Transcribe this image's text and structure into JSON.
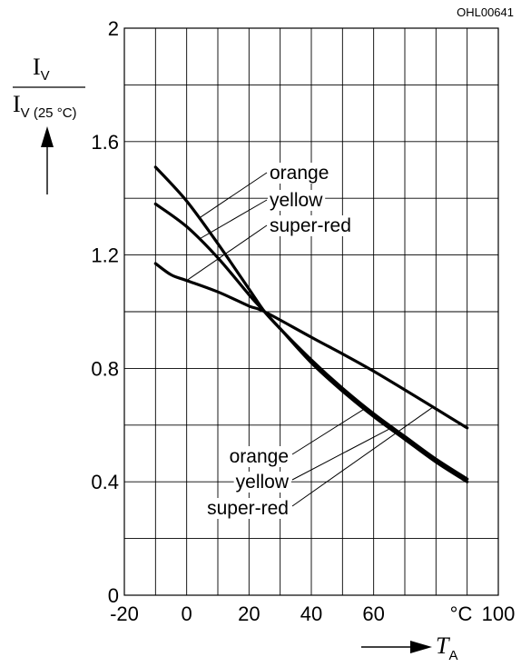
{
  "figure_code": "OHL00641",
  "unit_label": "°C",
  "y_axis": {
    "numerator": "I",
    "numerator_sub": "V",
    "denominator": "I",
    "denominator_sub": "V (25 °C)"
  },
  "x_axis": {
    "symbol": "T",
    "symbol_sub": "A"
  },
  "chart_data": {
    "type": "line",
    "xlim": [
      -20,
      100
    ],
    "ylim": [
      0,
      2
    ],
    "grid": true,
    "x_ticks": [
      "-20",
      "0",
      "20",
      "40",
      "60",
      "100"
    ],
    "y_ticks": [
      "0",
      "0.4",
      "0.8",
      "1.2",
      "1.6",
      "2"
    ],
    "series": [
      {
        "name": "orange",
        "x": [
          -10,
          0,
          10,
          20,
          25,
          30,
          40,
          50,
          60,
          70,
          80,
          90
        ],
        "y": [
          1.51,
          1.39,
          1.24,
          1.08,
          1.0,
          0.94,
          0.82,
          0.72,
          0.63,
          0.55,
          0.47,
          0.4
        ]
      },
      {
        "name": "yellow",
        "x": [
          -10,
          0,
          10,
          20,
          25,
          30,
          40,
          50,
          60,
          70,
          80,
          90
        ],
        "y": [
          1.38,
          1.3,
          1.19,
          1.06,
          1.0,
          0.94,
          0.83,
          0.73,
          0.64,
          0.56,
          0.48,
          0.41
        ]
      },
      {
        "name": "super-red",
        "x": [
          -10,
          -5,
          0,
          10,
          20,
          25,
          40,
          60,
          90
        ],
        "y": [
          1.17,
          1.13,
          1.11,
          1.07,
          1.02,
          1.0,
          0.91,
          0.79,
          0.59
        ]
      }
    ]
  }
}
